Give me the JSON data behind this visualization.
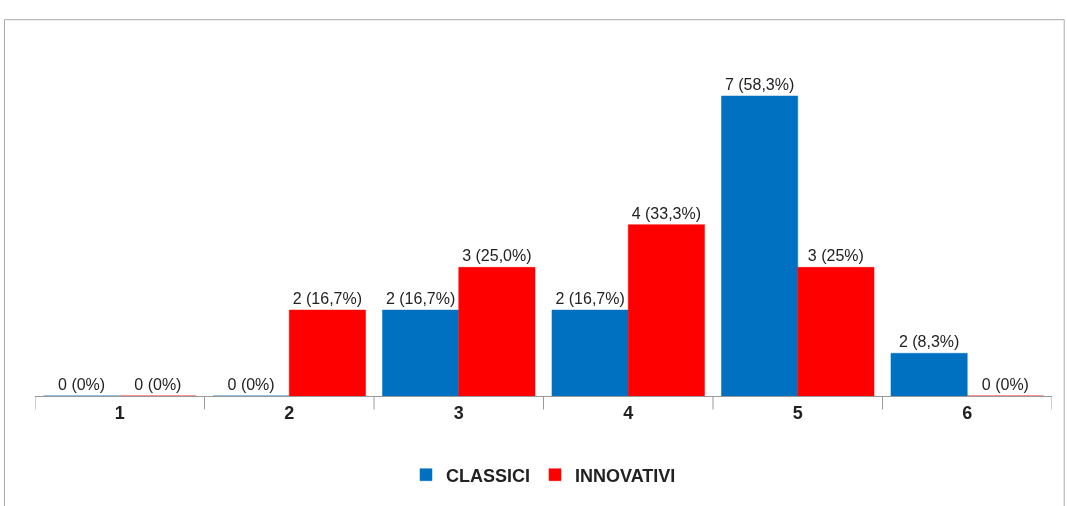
{
  "chart_data": {
    "type": "bar",
    "categories": [
      "1",
      "2",
      "3",
      "4",
      "5",
      "6"
    ],
    "series": [
      {
        "name": "CLASSICI",
        "color": "#0070c0",
        "values": [
          0,
          0,
          16.7,
          16.7,
          58.3,
          8.3
        ],
        "value_labels": [
          "0 (0%)",
          "0 (0%)",
          "2 (16,7%)",
          "2 (16,7%)",
          "7 (58,3%)",
          "2 (8,3%)"
        ]
      },
      {
        "name": "INNOVATIVI",
        "color": "#ff0000",
        "values": [
          0,
          16.7,
          25.0,
          33.3,
          25,
          0
        ],
        "value_labels": [
          "0 (0%)",
          "2 (16,7%)",
          "3 (25,0%)",
          "4 (33,3%)",
          "3 (25%)",
          "0 (0%)"
        ]
      }
    ],
    "legend": "bottom"
  }
}
